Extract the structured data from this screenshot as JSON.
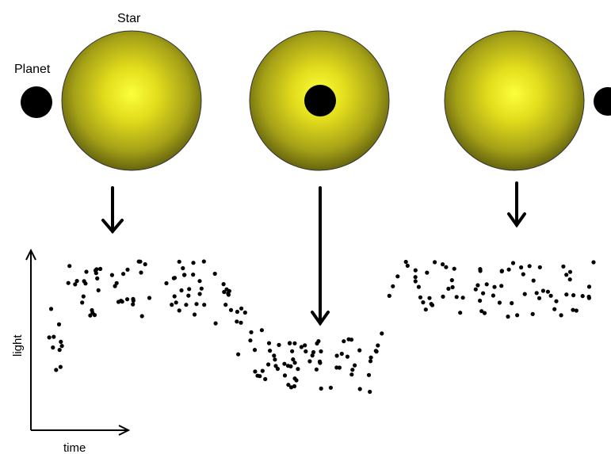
{
  "labels": {
    "star": "Star",
    "planet": "Planet",
    "y_axis": "light",
    "x_axis": "time"
  },
  "colors": {
    "star_center": "#fbfb3a",
    "star_mid": "#c9c61a",
    "star_edge": "#5a5a10",
    "planet": "#000000",
    "dots": "#000000",
    "arrows": "#000000"
  },
  "panels": [
    {
      "stage": "before-transit",
      "planet_position": "left-of-star"
    },
    {
      "stage": "mid-transit",
      "planet_position": "center-of-star"
    },
    {
      "stage": "after-transit",
      "planet_position": "right-of-star"
    }
  ],
  "light_curve": {
    "description_shape": "flat, dip at center, recover"
  }
}
